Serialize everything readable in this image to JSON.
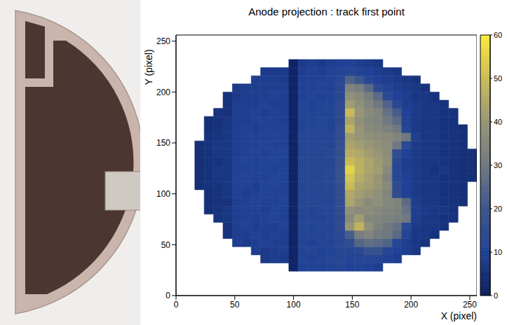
{
  "chart_data": {
    "type": "heatmap",
    "title": "Anode projection : track first point",
    "x_label": "X (pixel)",
    "y_label": "Y (pixel)",
    "xlim": [
      0,
      256
    ],
    "ylim": [
      0,
      256
    ],
    "xticks": [
      0,
      50,
      100,
      150,
      200,
      250
    ],
    "yticks": [
      0,
      50,
      100,
      150,
      200,
      250
    ],
    "x_bins": [
      0,
      8,
      16,
      24,
      32,
      40,
      48,
      56,
      64,
      72,
      80,
      88,
      96,
      104,
      112,
      120,
      128,
      136,
      144,
      152,
      160,
      168,
      176,
      184,
      192,
      200,
      208,
      216,
      224,
      232,
      240,
      248,
      256
    ],
    "y_bins": [
      0,
      8,
      16,
      24,
      32,
      40,
      48,
      56,
      64,
      72,
      80,
      88,
      96,
      104,
      112,
      120,
      128,
      136,
      144,
      152,
      160,
      168,
      176,
      184,
      192,
      200,
      208,
      216,
      224,
      232,
      240,
      248,
      256
    ],
    "cells": [
      [
        null,
        null,
        null,
        null,
        null,
        null,
        null,
        null,
        null,
        null,
        null,
        null,
        null,
        null,
        null,
        null,
        null,
        null,
        null,
        null,
        null,
        null,
        null,
        null,
        null,
        null,
        null,
        null,
        null,
        null,
        null,
        null
      ],
      [
        null,
        null,
        null,
        null,
        null,
        null,
        null,
        null,
        null,
        null,
        null,
        null,
        null,
        null,
        null,
        null,
        null,
        null,
        null,
        null,
        null,
        null,
        null,
        null,
        null,
        null,
        null,
        null,
        null,
        null,
        null,
        null
      ],
      [
        null,
        null,
        null,
        null,
        null,
        null,
        null,
        null,
        null,
        null,
        null,
        null,
        null,
        null,
        null,
        null,
        null,
        null,
        null,
        null,
        null,
        null,
        null,
        null,
        null,
        null,
        null,
        null,
        null,
        null,
        null,
        null
      ],
      [
        null,
        null,
        null,
        null,
        null,
        null,
        null,
        null,
        null,
        null,
        null,
        null,
        2,
        10,
        11,
        10,
        11,
        12,
        10,
        11,
        10,
        9,
        null,
        null,
        null,
        null,
        null,
        null,
        null,
        null,
        null,
        null
      ],
      [
        null,
        null,
        null,
        null,
        null,
        null,
        null,
        null,
        null,
        8,
        9,
        8,
        2,
        11,
        10,
        11,
        12,
        13,
        11,
        12,
        13,
        12,
        10,
        9,
        null,
        null,
        null,
        null,
        null,
        null,
        null,
        null
      ],
      [
        null,
        null,
        null,
        null,
        null,
        null,
        null,
        null,
        9,
        8,
        9,
        9,
        2,
        11,
        12,
        10,
        11,
        13,
        12,
        14,
        18,
        18,
        12,
        10,
        9,
        7,
        null,
        null,
        null,
        null,
        null,
        null
      ],
      [
        null,
        null,
        null,
        null,
        null,
        null,
        9,
        8,
        9,
        10,
        9,
        9,
        2,
        11,
        10,
        12,
        11,
        14,
        16,
        25,
        27,
        26,
        24,
        12,
        9,
        7,
        6,
        null,
        null,
        null,
        null,
        null
      ],
      [
        null,
        null,
        null,
        null,
        null,
        6,
        9,
        9,
        10,
        9,
        10,
        9,
        2,
        11,
        12,
        11,
        12,
        14,
        22,
        32,
        34,
        31,
        30,
        26,
        12,
        7,
        7,
        6,
        null,
        null,
        null,
        null
      ],
      [
        null,
        null,
        null,
        null,
        null,
        6,
        9,
        10,
        9,
        10,
        9,
        10,
        2,
        12,
        11,
        12,
        11,
        15,
        40,
        48,
        38,
        33,
        30,
        28,
        14,
        8,
        7,
        7,
        6,
        null,
        null,
        null
      ],
      [
        null,
        null,
        null,
        null,
        6,
        7,
        9,
        10,
        9,
        10,
        11,
        10,
        2,
        11,
        12,
        11,
        12,
        15,
        36,
        42,
        35,
        34,
        33,
        32,
        30,
        9,
        7,
        7,
        6,
        6,
        null,
        null
      ],
      [
        null,
        null,
        null,
        5,
        6,
        7,
        9,
        10,
        10,
        9,
        11,
        10,
        2,
        12,
        11,
        12,
        12,
        16,
        38,
        36,
        37,
        35,
        34,
        33,
        28,
        9,
        8,
        7,
        7,
        6,
        null,
        null
      ],
      [
        null,
        null,
        null,
        5,
        6,
        6,
        9,
        10,
        11,
        10,
        10,
        11,
        2,
        12,
        13,
        12,
        12,
        16,
        44,
        40,
        36,
        38,
        35,
        34,
        26,
        9,
        7,
        7,
        6,
        6,
        5,
        null
      ],
      [
        null,
        null,
        null,
        5,
        6,
        7,
        10,
        9,
        10,
        11,
        10,
        10,
        2,
        12,
        12,
        13,
        12,
        17,
        45,
        42,
        40,
        38,
        34,
        16,
        10,
        8,
        7,
        7,
        6,
        6,
        5,
        null
      ],
      [
        null,
        null,
        5,
        6,
        6,
        7,
        10,
        10,
        9,
        11,
        11,
        10,
        2,
        12,
        13,
        12,
        13,
        17,
        50,
        44,
        42,
        40,
        36,
        15,
        10,
        8,
        7,
        7,
        6,
        6,
        5,
        null
      ],
      [
        null,
        null,
        5,
        6,
        7,
        7,
        10,
        11,
        10,
        10,
        11,
        11,
        2,
        13,
        12,
        13,
        13,
        18,
        52,
        46,
        43,
        40,
        34,
        13,
        10,
        8,
        7,
        7,
        6,
        6,
        5,
        5
      ],
      [
        null,
        null,
        5,
        6,
        7,
        7,
        10,
        10,
        11,
        11,
        10,
        11,
        2,
        12,
        13,
        12,
        13,
        18,
        55,
        48,
        44,
        42,
        36,
        12,
        9,
        8,
        7,
        6,
        7,
        6,
        5,
        5
      ],
      [
        null,
        null,
        5,
        6,
        6,
        7,
        10,
        11,
        10,
        11,
        11,
        10,
        2,
        13,
        12,
        13,
        12,
        18,
        50,
        47,
        44,
        41,
        38,
        14,
        9,
        8,
        7,
        7,
        6,
        6,
        5,
        5
      ],
      [
        null,
        null,
        5,
        6,
        7,
        7,
        9,
        10,
        11,
        10,
        11,
        11,
        2,
        12,
        13,
        12,
        13,
        17,
        46,
        45,
        42,
        40,
        37,
        16,
        10,
        8,
        7,
        7,
        6,
        6,
        5,
        5
      ],
      [
        null,
        null,
        5,
        6,
        7,
        7,
        9,
        10,
        10,
        11,
        10,
        10,
        2,
        12,
        12,
        13,
        12,
        17,
        44,
        42,
        40,
        38,
        37,
        30,
        14,
        8,
        7,
        7,
        6,
        6,
        5,
        null
      ],
      [
        null,
        null,
        null,
        6,
        6,
        7,
        9,
        10,
        10,
        10,
        11,
        10,
        2,
        12,
        12,
        12,
        12,
        16,
        42,
        40,
        38,
        37,
        36,
        34,
        30,
        9,
        7,
        7,
        6,
        6,
        5,
        null
      ],
      [
        null,
        null,
        null,
        5,
        6,
        7,
        9,
        10,
        9,
        10,
        10,
        10,
        2,
        11,
        12,
        12,
        11,
        16,
        48,
        40,
        36,
        35,
        33,
        30,
        12,
        8,
        7,
        7,
        6,
        6,
        5,
        null
      ],
      [
        null,
        null,
        null,
        5,
        6,
        7,
        9,
        9,
        10,
        10,
        10,
        9,
        2,
        11,
        11,
        12,
        11,
        15,
        44,
        38,
        35,
        34,
        30,
        26,
        11,
        8,
        7,
        7,
        6,
        6,
        null,
        null
      ],
      [
        null,
        null,
        null,
        null,
        6,
        6,
        9,
        9,
        10,
        9,
        10,
        9,
        2,
        11,
        11,
        11,
        11,
        15,
        50,
        40,
        36,
        34,
        28,
        22,
        10,
        8,
        7,
        7,
        6,
        6,
        null,
        null
      ],
      [
        null,
        null,
        null,
        null,
        null,
        6,
        9,
        9,
        9,
        10,
        9,
        9,
        2,
        11,
        10,
        11,
        11,
        15,
        42,
        38,
        34,
        30,
        24,
        14,
        9,
        8,
        7,
        7,
        6,
        null,
        null,
        null
      ],
      [
        null,
        null,
        null,
        null,
        null,
        6,
        8,
        9,
        9,
        9,
        10,
        9,
        2,
        10,
        11,
        10,
        11,
        14,
        38,
        36,
        32,
        26,
        14,
        10,
        9,
        7,
        7,
        6,
        null,
        null,
        null,
        null
      ],
      [
        null,
        null,
        null,
        null,
        null,
        null,
        8,
        9,
        9,
        9,
        9,
        9,
        2,
        10,
        10,
        11,
        10,
        14,
        34,
        32,
        26,
        15,
        11,
        9,
        8,
        7,
        6,
        null,
        null,
        null,
        null,
        null
      ],
      [
        null,
        null,
        null,
        null,
        null,
        null,
        null,
        null,
        9,
        9,
        9,
        8,
        2,
        10,
        10,
        10,
        10,
        13,
        24,
        20,
        13,
        10,
        9,
        8,
        7,
        6,
        null,
        null,
        null,
        null,
        null,
        null
      ],
      [
        null,
        null,
        null,
        null,
        null,
        null,
        null,
        null,
        null,
        8,
        8,
        8,
        2,
        9,
        10,
        9,
        10,
        11,
        13,
        11,
        10,
        9,
        8,
        7,
        null,
        null,
        null,
        null,
        null,
        null,
        null,
        null
      ],
      [
        null,
        null,
        null,
        null,
        null,
        null,
        null,
        null,
        null,
        null,
        null,
        null,
        2,
        8,
        9,
        8,
        9,
        10,
        10,
        9,
        8,
        7,
        null,
        null,
        null,
        null,
        null,
        null,
        null,
        null,
        null,
        null
      ],
      [
        null,
        null,
        null,
        null,
        null,
        null,
        null,
        null,
        null,
        null,
        null,
        null,
        null,
        null,
        null,
        null,
        null,
        null,
        null,
        null,
        null,
        null,
        null,
        null,
        null,
        null,
        null,
        null,
        null,
        null,
        null,
        null
      ],
      [
        null,
        null,
        null,
        null,
        null,
        null,
        null,
        null,
        null,
        null,
        null,
        null,
        null,
        null,
        null,
        null,
        null,
        null,
        null,
        null,
        null,
        null,
        null,
        null,
        null,
        null,
        null,
        null,
        null,
        null,
        null,
        null
      ],
      [
        null,
        null,
        null,
        null,
        null,
        null,
        null,
        null,
        null,
        null,
        null,
        null,
        null,
        null,
        null,
        null,
        null,
        null,
        null,
        null,
        null,
        null,
        null,
        null,
        null,
        null,
        null,
        null,
        null,
        null,
        null,
        null
      ]
    ],
    "colorbar_range": [
      0,
      60
    ],
    "colorbar_ticks": [
      0,
      10,
      20,
      30,
      40,
      50,
      60
    ]
  }
}
